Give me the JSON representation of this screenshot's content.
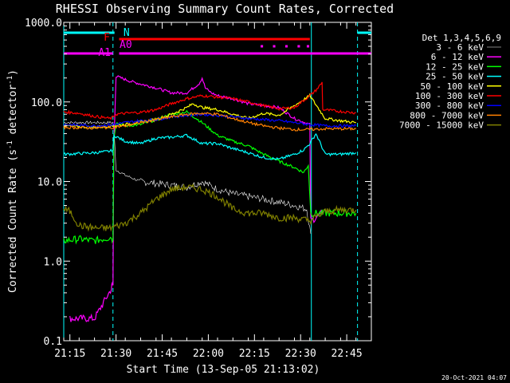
{
  "chart_data": {
    "type": "line",
    "title": "RHESSI Observing Summary Count Rates, Corrected",
    "xlabel": "Start Time (13-Sep-05 21:13:02)",
    "ylabel": "Corrected Count Rate (s",
    "ylabel_sup": "-1",
    "ylabel_mid": " detector",
    "ylabel_end": ")",
    "ylim": [
      0.1,
      1000
    ],
    "yscale": "log",
    "x_range_minutes": [
      0,
      100
    ],
    "x_tick_minutes": [
      2,
      17,
      32,
      47,
      62,
      77,
      92
    ],
    "x_tick_labels": [
      "21:15",
      "21:30",
      "21:45",
      "22:00",
      "22:15",
      "22:30",
      "22:45"
    ],
    "y_tick_values": [
      1000,
      100,
      10,
      1,
      0.1
    ],
    "y_tick_labels": [
      "1000.0",
      "100.0",
      "10.0",
      "1.0",
      "0.1"
    ],
    "legend_title": "Det 1,3,4,5,6,9",
    "footer_date": "20-Oct-2021 04:07",
    "flag_labels": [
      "N",
      "F",
      "A0",
      "A1"
    ],
    "flags": [
      {
        "label": "N",
        "color": "#00ffff",
        "segments": [
          [
            0,
            16.5
          ],
          [
            95.5,
            100
          ]
        ]
      },
      {
        "label": "F",
        "color": "#ff0000",
        "segments": [
          [
            18,
            80
          ]
        ]
      },
      {
        "label": "A0",
        "color": "#ff00ff",
        "segments": [
          [
            64,
            64.8
          ],
          [
            68,
            68.8
          ],
          [
            72,
            72.8
          ],
          [
            76,
            76.8
          ],
          [
            79,
            79.8
          ]
        ]
      },
      {
        "label": "A1",
        "color": "#ff00ff",
        "segments": [
          [
            0,
            16
          ],
          [
            18,
            100
          ]
        ]
      }
    ],
    "night_lines_minutes": [
      0,
      16,
      80.5,
      95.5
    ],
    "series": [
      {
        "name": "3 - 6 keV",
        "color": "#000000",
        "x": [
          0,
          16,
          16.3,
          17,
          20,
          25,
          30,
          35,
          40,
          45,
          50,
          55,
          60,
          65,
          70,
          75,
          79,
          80.3
        ],
        "y": [
          55,
          55,
          48,
          14,
          12,
          10,
          9.5,
          9,
          8.5,
          10,
          8,
          7,
          6.5,
          6,
          5.5,
          5,
          4.5,
          2.2
        ]
      },
      {
        "name": "6 - 12 keV",
        "color": "#ff00ff",
        "x": [
          2,
          4,
          10,
          15.5,
          15.7,
          16,
          16.3,
          17,
          22,
          30,
          35,
          40,
          44,
          45,
          46,
          48,
          50,
          55,
          60,
          70,
          75,
          80,
          80.3,
          84
        ],
        "y": [
          0.19,
          0.19,
          0.19,
          0.45,
          0.5,
          0.5,
          30,
          210,
          180,
          150,
          130,
          130,
          170,
          200,
          150,
          130,
          120,
          110,
          95,
          85,
          62,
          52,
          3.2,
          4
        ]
      },
      {
        "name": "12 - 25 keV",
        "color": "#00ff00",
        "x": [
          0,
          5,
          10,
          15.5,
          16,
          16.3,
          17,
          20,
          25,
          30,
          35,
          40,
          45,
          50,
          55,
          60,
          65,
          70,
          75,
          78,
          79.5,
          80.3,
          84,
          95
        ],
        "y": [
          1.8,
          1.9,
          1.8,
          2,
          1.8,
          35,
          55,
          50,
          52,
          60,
          70,
          75,
          55,
          38,
          32,
          28,
          22,
          18,
          15,
          13,
          16,
          4,
          4,
          4
        ]
      },
      {
        "name": "25 - 50 keV",
        "color": "#00ffff",
        "x": [
          0,
          10,
          15,
          16,
          16.3,
          20,
          25,
          30,
          35,
          40,
          45,
          50,
          55,
          60,
          65,
          70,
          75,
          78,
          80,
          82,
          85,
          90,
          95
        ],
        "y": [
          22,
          23,
          24,
          25,
          38,
          32,
          30,
          35,
          36,
          38,
          30,
          30,
          26,
          23,
          20,
          19,
          22,
          25,
          30,
          40,
          22,
          22,
          23
        ]
      },
      {
        "name": "50 - 100 keV",
        "color": "#ffff00",
        "x": [
          0,
          10,
          16.3,
          20,
          25,
          30,
          35,
          40,
          42,
          45,
          50,
          55,
          60,
          65,
          70,
          75,
          80,
          85,
          90,
          95
        ],
        "y": [
          50,
          48,
          50,
          52,
          56,
          60,
          70,
          85,
          95,
          85,
          80,
          70,
          62,
          72,
          68,
          90,
          120,
          62,
          58,
          55
        ]
      },
      {
        "name": "100 - 300 keV",
        "color": "#ff0000",
        "x": [
          0,
          5,
          10,
          15,
          16,
          17,
          20,
          25,
          30,
          35,
          40,
          45,
          50,
          55,
          60,
          65,
          70,
          75,
          80,
          82,
          84,
          84.2,
          90,
          95
        ],
        "y": [
          75,
          72,
          66,
          62,
          64,
          70,
          72,
          74,
          80,
          95,
          110,
          120,
          115,
          110,
          100,
          90,
          82,
          85,
          120,
          140,
          175,
          80,
          76,
          73
        ]
      },
      {
        "name": "300 - 800 keV",
        "color": "#0000ff",
        "x": [
          0,
          10,
          16,
          20,
          25,
          30,
          35,
          40,
          45,
          50,
          55,
          60,
          65,
          70,
          75,
          80,
          85,
          90,
          95
        ],
        "y": [
          52,
          50,
          52,
          55,
          58,
          60,
          65,
          68,
          70,
          68,
          65,
          62,
          60,
          58,
          55,
          52,
          50,
          50,
          50
        ]
      },
      {
        "name": "800 - 7000 keV",
        "color": "#ff8000",
        "x": [
          0,
          10,
          16,
          20,
          25,
          30,
          35,
          40,
          45,
          50,
          55,
          60,
          65,
          70,
          75,
          80,
          85,
          90,
          95
        ],
        "y": [
          48,
          47,
          48,
          50,
          55,
          60,
          65,
          70,
          72,
          70,
          62,
          55,
          50,
          47,
          45,
          45,
          46,
          46,
          46
        ]
      },
      {
        "name": "7000 - 15000 keV",
        "color": "#808000",
        "x": [
          0,
          2,
          5,
          10,
          15,
          20,
          25,
          30,
          35,
          40,
          45,
          50,
          55,
          60,
          65,
          70,
          75,
          80,
          85,
          90,
          95
        ],
        "y": [
          4.5,
          4.2,
          2.8,
          2.6,
          2.6,
          3,
          4,
          6,
          8,
          8.5,
          8,
          6.5,
          4.5,
          4,
          4,
          3.5,
          3.5,
          3.2,
          4.2,
          4.4,
          4.4
        ]
      }
    ]
  }
}
